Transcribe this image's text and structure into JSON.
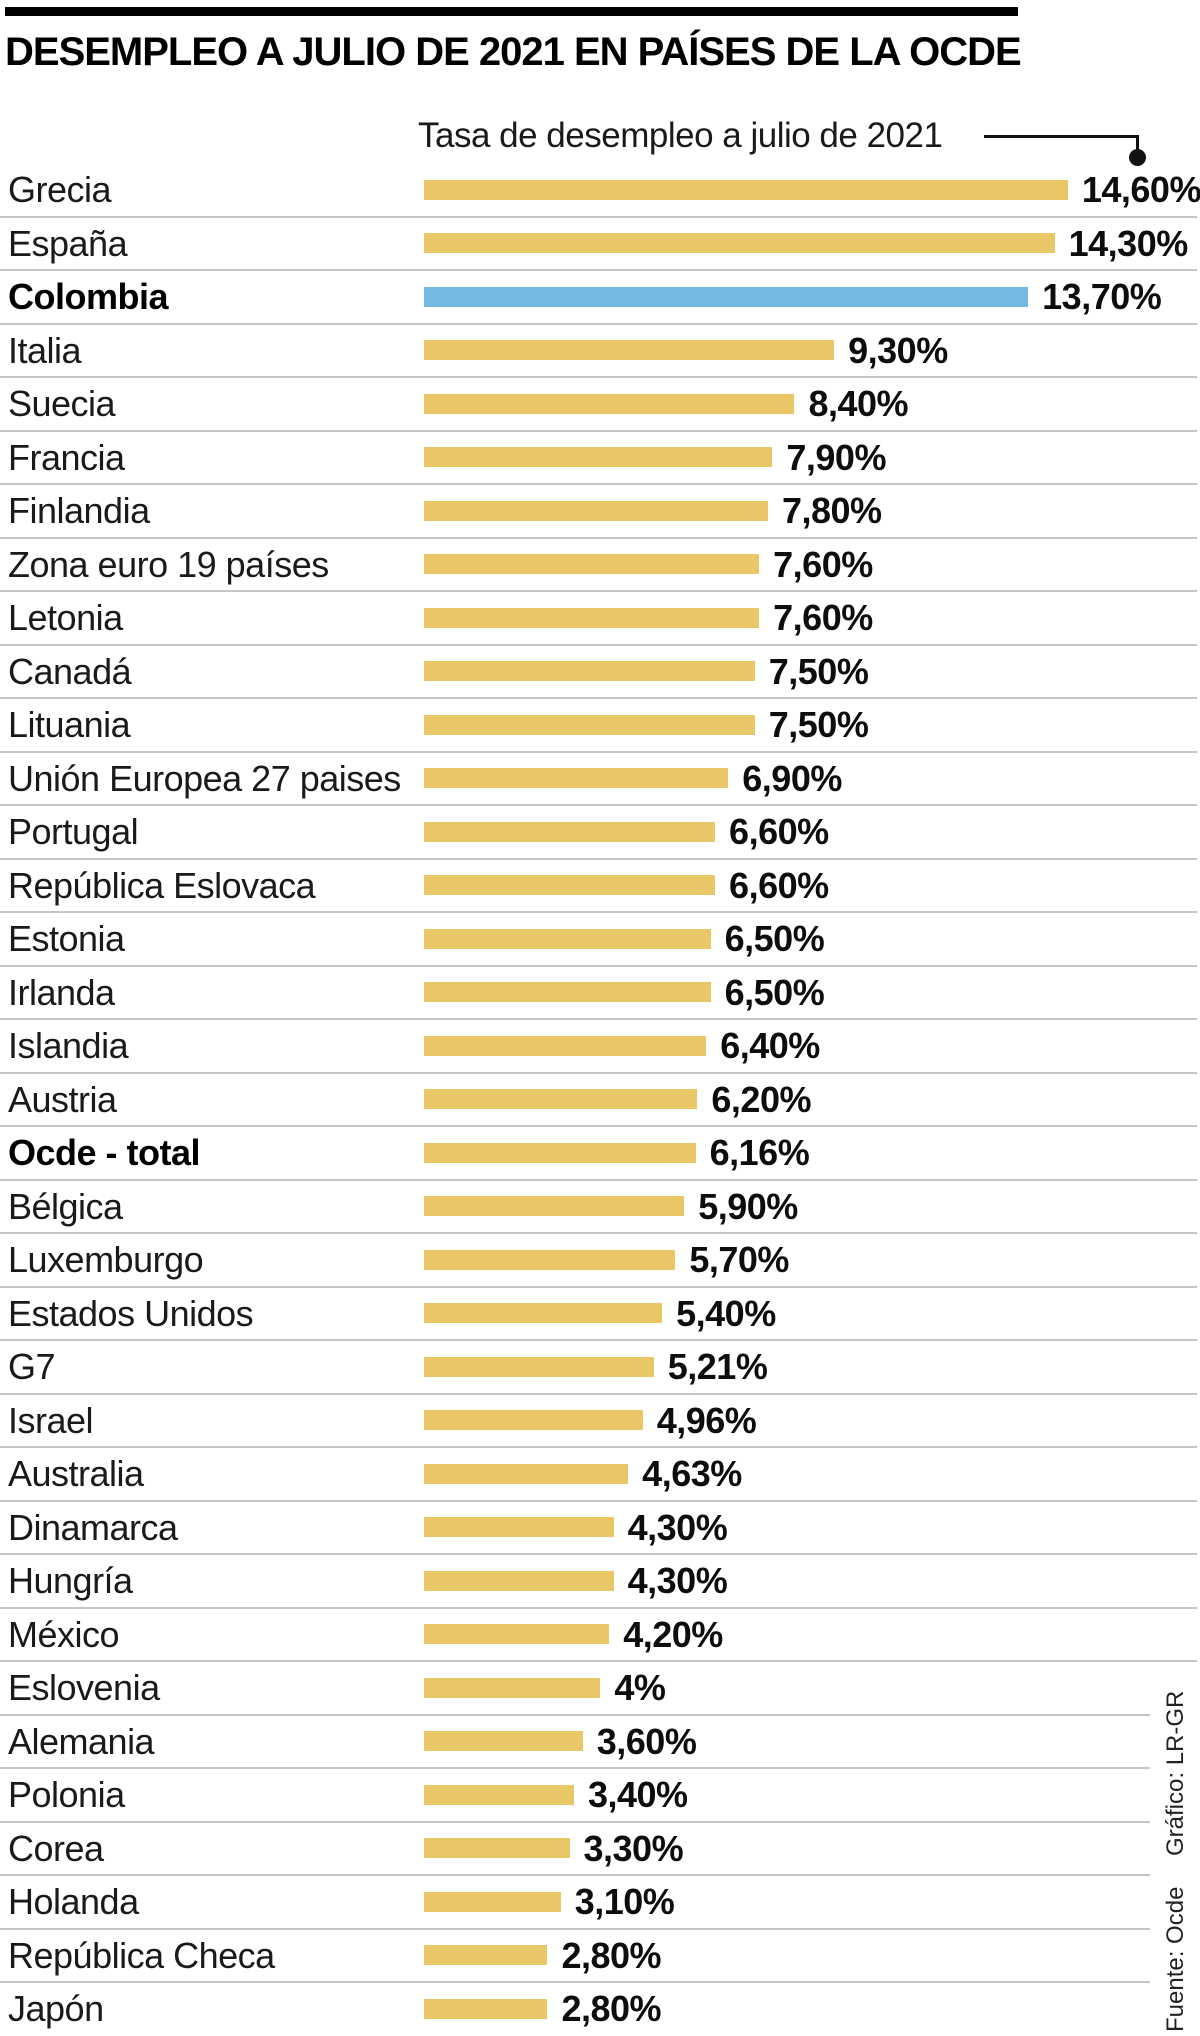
{
  "title": "DESEMPLEO A JULIO DE 2021 EN PAÍSES DE LA OCDE",
  "credits": {
    "grafico": "Gráfico: LR-GR",
    "fuente": "Fuente: Ocde"
  },
  "chart_data": {
    "type": "bar",
    "orientation": "horizontal",
    "title": "DESEMPLEO A JULIO DE 2021 EN PAÍSES DE LA OCDE",
    "annotation_label": "Tasa de desempleo a julio de 2021",
    "unit": "%",
    "xlim": [
      0,
      15
    ],
    "grid": false,
    "legend": "none",
    "colors": {
      "bar": "#e9c666",
      "highlight": "#74b9e2",
      "separator": "#c6c6c6",
      "topbar": "#000000",
      "text": "#1a1a1a"
    },
    "bars": [
      {
        "label": "Grecia",
        "value": 14.6,
        "display": "14,60%",
        "bold": false,
        "highlight": false
      },
      {
        "label": "España",
        "value": 14.3,
        "display": "14,30%",
        "bold": false,
        "highlight": false
      },
      {
        "label": "Colombia",
        "value": 13.7,
        "display": "13,70%",
        "bold": true,
        "highlight": true
      },
      {
        "label": "Italia",
        "value": 9.3,
        "display": "9,30%",
        "bold": false,
        "highlight": false
      },
      {
        "label": "Suecia",
        "value": 8.4,
        "display": "8,40%",
        "bold": false,
        "highlight": false
      },
      {
        "label": "Francia",
        "value": 7.9,
        "display": "7,90%",
        "bold": false,
        "highlight": false
      },
      {
        "label": "Finlandia",
        "value": 7.8,
        "display": "7,80%",
        "bold": false,
        "highlight": false
      },
      {
        "label": "Zona euro 19 países",
        "value": 7.6,
        "display": "7,60%",
        "bold": false,
        "highlight": false
      },
      {
        "label": "Letonia",
        "value": 7.6,
        "display": "7,60%",
        "bold": false,
        "highlight": false
      },
      {
        "label": "Canadá",
        "value": 7.5,
        "display": "7,50%",
        "bold": false,
        "highlight": false
      },
      {
        "label": "Lituania",
        "value": 7.5,
        "display": "7,50%",
        "bold": false,
        "highlight": false
      },
      {
        "label": "Unión Europea 27 paises",
        "value": 6.9,
        "display": "6,90%",
        "bold": false,
        "highlight": false
      },
      {
        "label": "Portugal",
        "value": 6.6,
        "display": "6,60%",
        "bold": false,
        "highlight": false
      },
      {
        "label": "República Eslovaca",
        "value": 6.6,
        "display": "6,60%",
        "bold": false,
        "highlight": false
      },
      {
        "label": "Estonia",
        "value": 6.5,
        "display": "6,50%",
        "bold": false,
        "highlight": false
      },
      {
        "label": "Irlanda",
        "value": 6.5,
        "display": "6,50%",
        "bold": false,
        "highlight": false
      },
      {
        "label": "Islandia",
        "value": 6.4,
        "display": "6,40%",
        "bold": false,
        "highlight": false
      },
      {
        "label": "Austria",
        "value": 6.2,
        "display": "6,20%",
        "bold": false,
        "highlight": false
      },
      {
        "label": "Ocde - total",
        "value": 6.16,
        "display": "6,16%",
        "bold": true,
        "highlight": false
      },
      {
        "label": "Bélgica",
        "value": 5.9,
        "display": "5,90%",
        "bold": false,
        "highlight": false
      },
      {
        "label": "Luxemburgo",
        "value": 5.7,
        "display": "5,70%",
        "bold": false,
        "highlight": false
      },
      {
        "label": "Estados Unidos",
        "value": 5.4,
        "display": "5,40%",
        "bold": false,
        "highlight": false
      },
      {
        "label": "G7",
        "value": 5.21,
        "display": "5,21%",
        "bold": false,
        "highlight": false
      },
      {
        "label": "Israel",
        "value": 4.96,
        "display": "4,96%",
        "bold": false,
        "highlight": false
      },
      {
        "label": "Australia",
        "value": 4.63,
        "display": "4,63%",
        "bold": false,
        "highlight": false
      },
      {
        "label": "Dinamarca",
        "value": 4.3,
        "display": "4,30%",
        "bold": false,
        "highlight": false
      },
      {
        "label": "Hungría",
        "value": 4.3,
        "display": "4,30%",
        "bold": false,
        "highlight": false
      },
      {
        "label": "México",
        "value": 4.2,
        "display": "4,20%",
        "bold": false,
        "highlight": false
      },
      {
        "label": "Eslovenia",
        "value": 4.0,
        "display": "4%",
        "bold": false,
        "highlight": false
      },
      {
        "label": "Alemania",
        "value": 3.6,
        "display": "3,60%",
        "bold": false,
        "highlight": false
      },
      {
        "label": "Polonia",
        "value": 3.4,
        "display": "3,40%",
        "bold": false,
        "highlight": false
      },
      {
        "label": "Corea",
        "value": 3.3,
        "display": "3,30%",
        "bold": false,
        "highlight": false
      },
      {
        "label": "Holanda",
        "value": 3.1,
        "display": "3,10%",
        "bold": false,
        "highlight": false
      },
      {
        "label": "República Checa",
        "value": 2.8,
        "display": "2,80%",
        "bold": false,
        "highlight": false
      },
      {
        "label": "Japón",
        "value": 2.8,
        "display": "2,80%",
        "bold": false,
        "highlight": false
      }
    ]
  }
}
